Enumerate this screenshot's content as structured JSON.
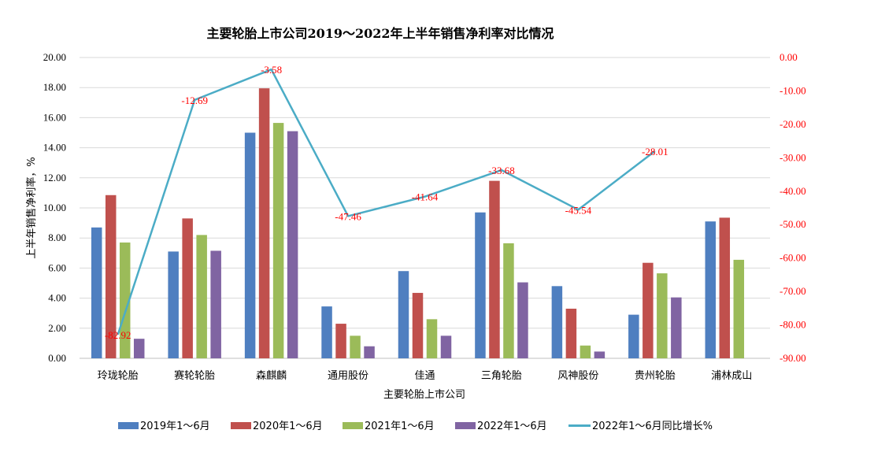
{
  "chart_data": {
    "type": "bar",
    "title": "主要轮胎上市公司2019～2022年上半年销售净利率对比情况",
    "xlabel": "主要轮胎上市公司",
    "ylabel": "上半年销售净利率，%",
    "ylim": [
      0,
      20
    ],
    "y2lim": [
      -90,
      0
    ],
    "y_ticks": [
      "0.00",
      "2.00",
      "4.00",
      "6.00",
      "8.00",
      "10.00",
      "12.00",
      "14.00",
      "16.00",
      "18.00",
      "20.00"
    ],
    "y2_ticks": [
      "0.00",
      "-10.00",
      "-20.00",
      "-30.00",
      "-40.00",
      "-50.00",
      "-60.00",
      "-70.00",
      "-80.00",
      "-90.00"
    ],
    "grid": true,
    "legend_position": "bottom",
    "categories": [
      "玲珑轮胎",
      "赛轮轮胎",
      "森麒麟",
      "通用股份",
      "佳通",
      "三角轮胎",
      "风神股份",
      "贵州轮胎",
      "浦林成山"
    ],
    "series": [
      {
        "name": "2019年1～6月",
        "color": "#4f7fc0",
        "values": [
          8.7,
          7.1,
          15.0,
          3.45,
          5.8,
          9.7,
          4.8,
          2.9,
          9.1
        ]
      },
      {
        "name": "2020年1～6月",
        "color": "#c0504d",
        "values": [
          10.85,
          9.3,
          17.95,
          2.3,
          4.35,
          11.8,
          3.3,
          6.35,
          9.35
        ]
      },
      {
        "name": "2021年1～6月",
        "color": "#9bbb59",
        "values": [
          7.7,
          8.2,
          15.65,
          1.5,
          2.6,
          7.65,
          0.85,
          5.65,
          6.55
        ]
      },
      {
        "name": "2022年1～6月",
        "color": "#8064a2",
        "values": [
          1.3,
          7.15,
          15.1,
          0.8,
          1.5,
          5.05,
          0.45,
          4.05,
          null
        ]
      }
    ],
    "line_series": {
      "name": "2022年1～6月同比增长%",
      "color": "#4bacc6",
      "axis": "right",
      "values": [
        -82.92,
        -12.69,
        -3.58,
        -47.46,
        -41.64,
        -33.68,
        -45.54,
        -28.01,
        null
      ],
      "labels": [
        "-82.92",
        "-12.69",
        "-3.58",
        "-47.46",
        "-41.64",
        "-33.68",
        "-45.54",
        "-28.01",
        ""
      ]
    }
  }
}
